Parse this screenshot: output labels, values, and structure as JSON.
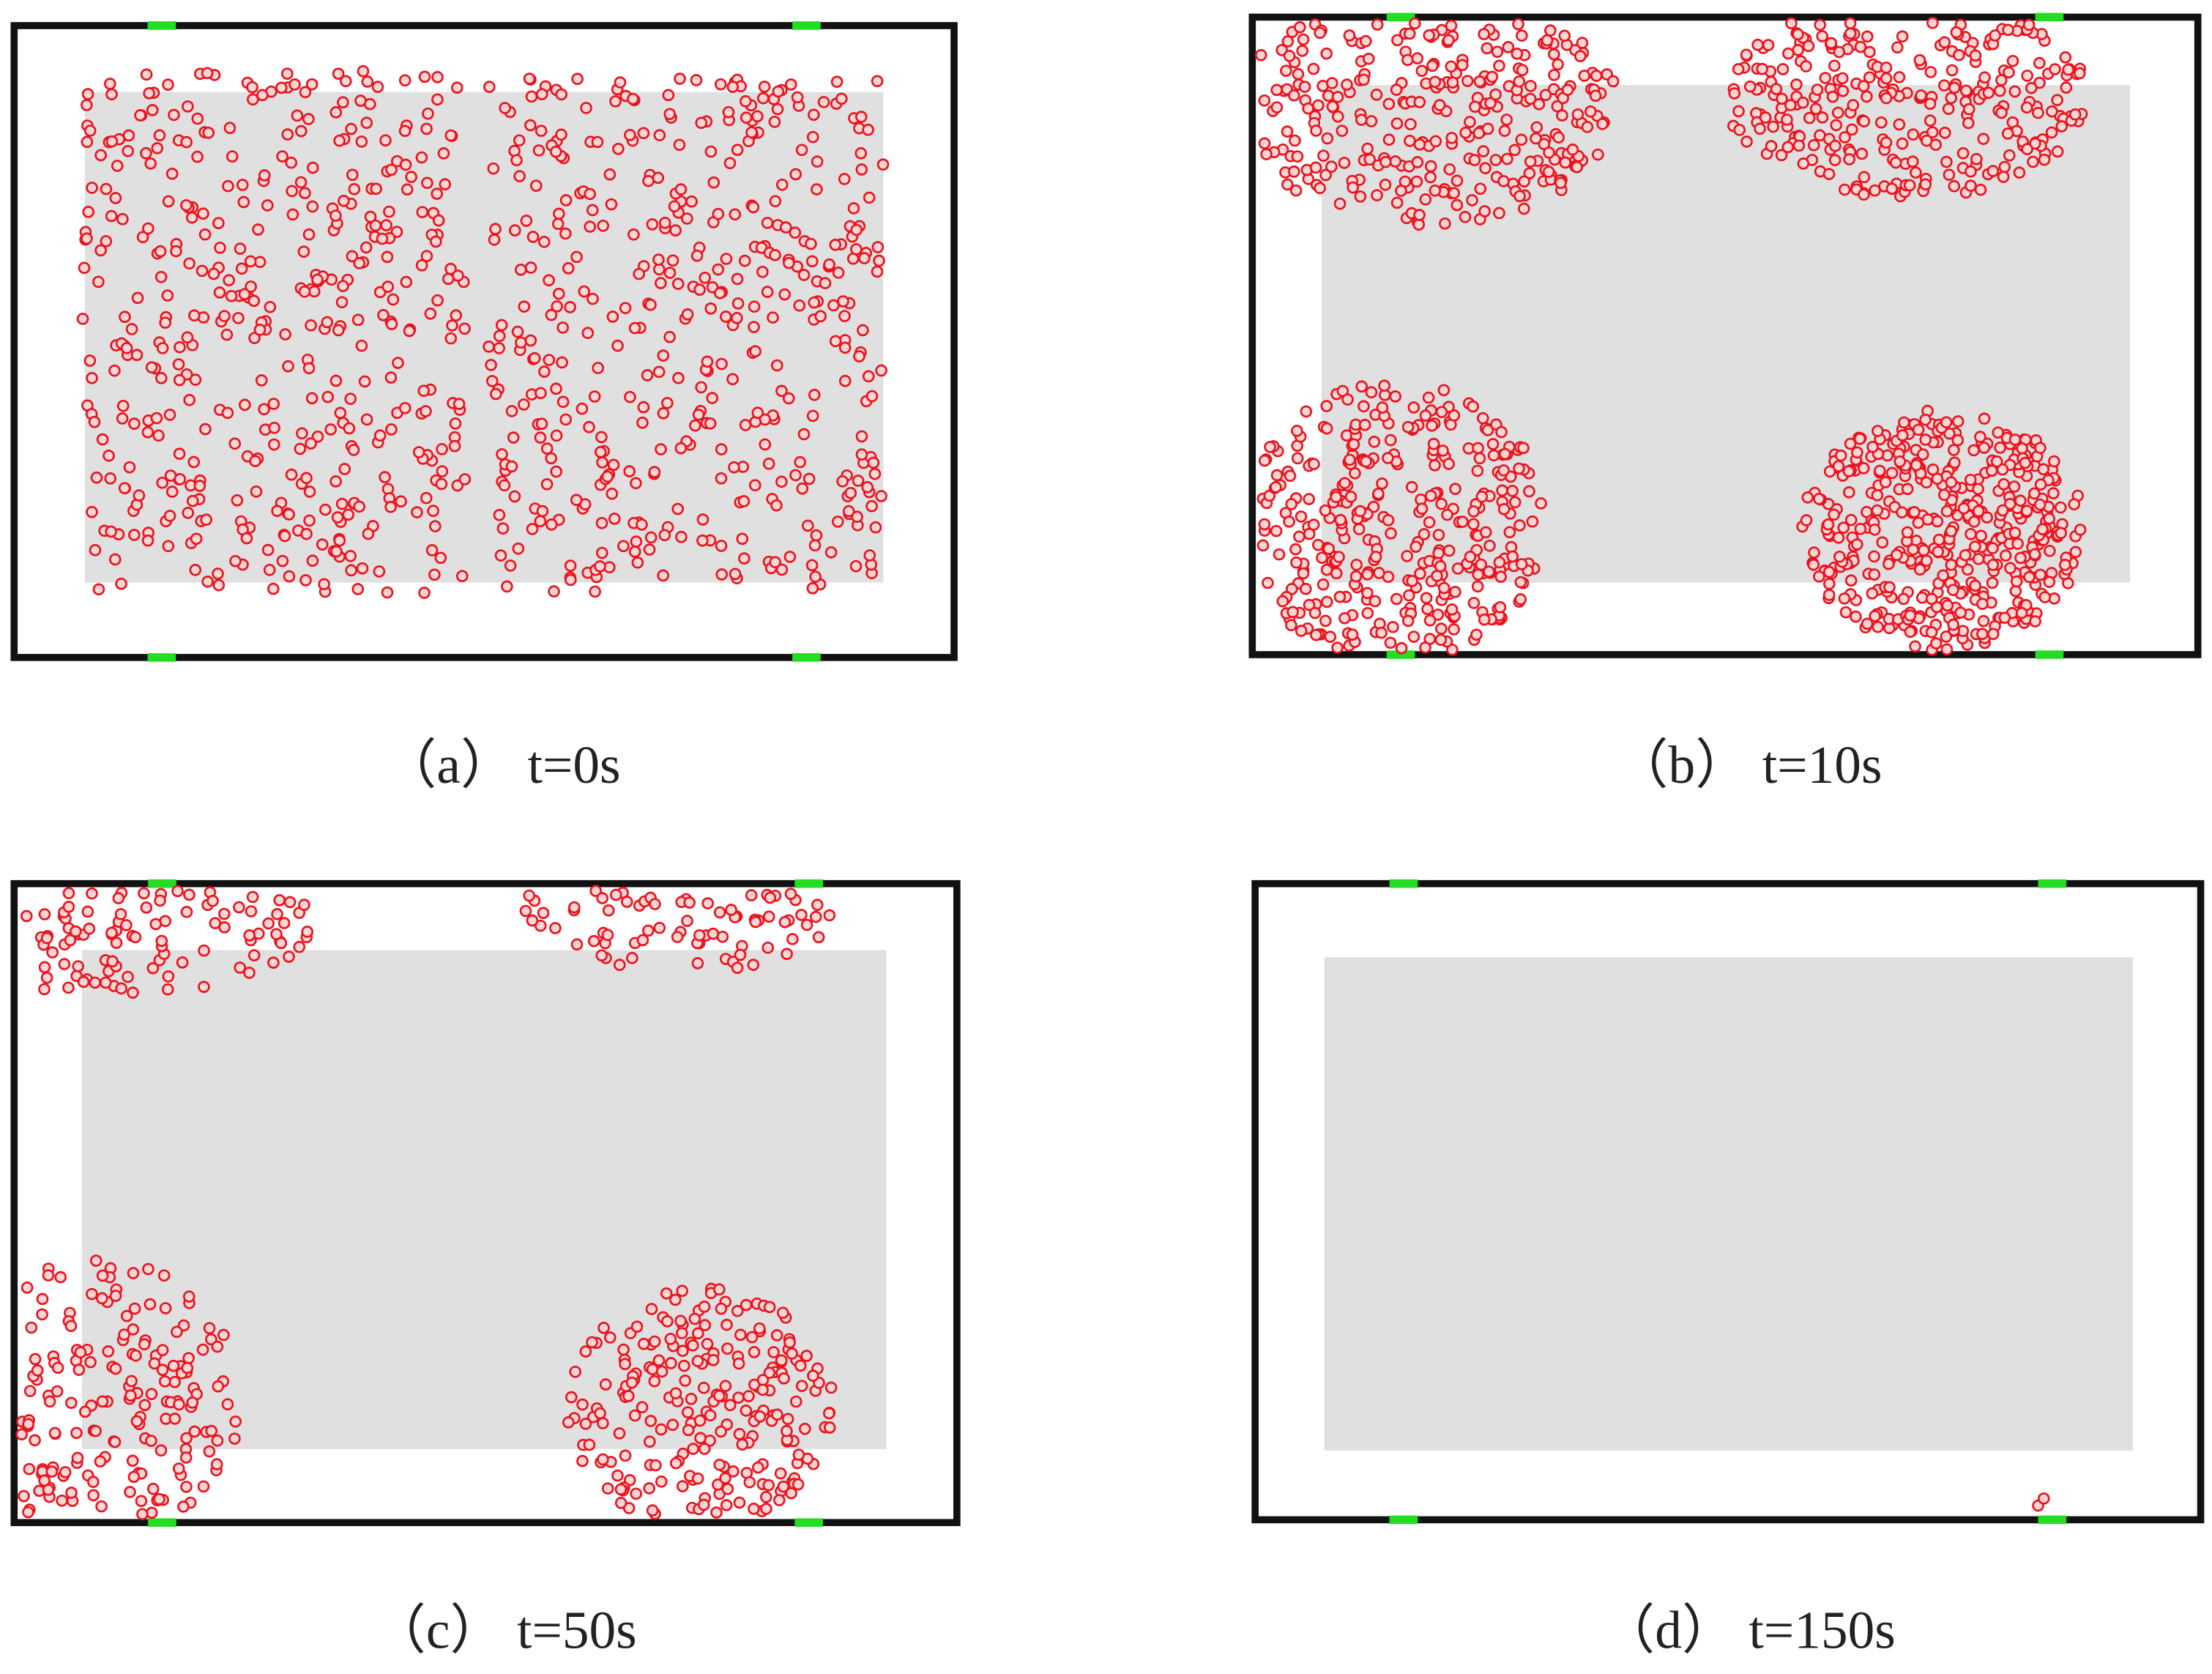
{
  "panels": [
    {
      "caption": "（a） t=0s"
    },
    {
      "caption": "（b） t=10s"
    },
    {
      "caption": "（c） t=50s"
    },
    {
      "caption": "（d） t=150s"
    }
  ]
}
